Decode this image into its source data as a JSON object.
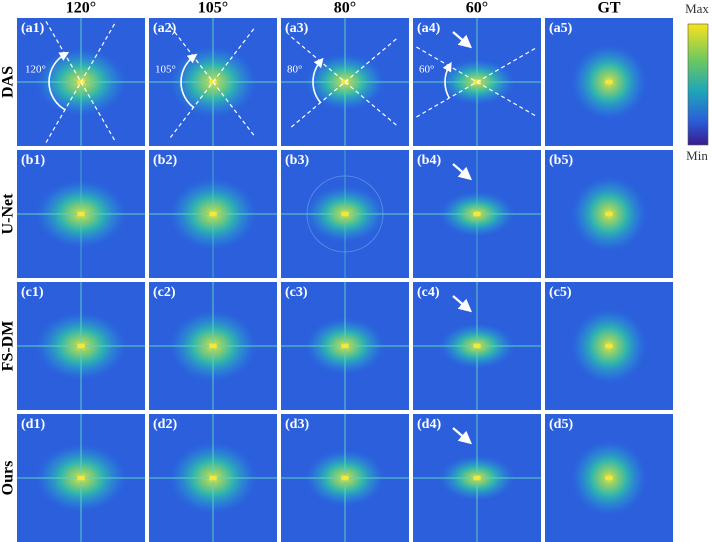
{
  "columns": [
    "120°",
    "105°",
    "80°",
    "60°",
    "GT"
  ],
  "rows": [
    {
      "label": "DAS",
      "panels": [
        "(a1)",
        "(a2)",
        "(a3)",
        "(a4)",
        "(a5)"
      ]
    },
    {
      "label": "U-Net",
      "panels": [
        "(b1)",
        "(b2)",
        "(b3)",
        "(b4)",
        "(b5)"
      ]
    },
    {
      "label": "FS-DM",
      "panels": [
        "(c1)",
        "(c2)",
        "(c3)",
        "(c4)",
        "(c5)"
      ]
    },
    {
      "label": "Ours",
      "panels": [
        "(d1)",
        "(d2)",
        "(d3)",
        "(d4)",
        "(d5)"
      ]
    }
  ],
  "angle_annotations": [
    "120°",
    "105°",
    "80°",
    "60°"
  ],
  "colorbar": {
    "max": "Max",
    "min": "Min"
  }
}
